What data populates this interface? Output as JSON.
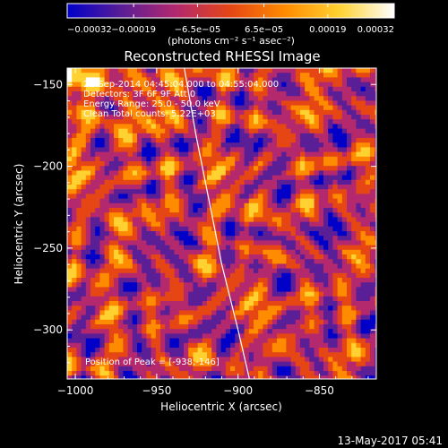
{
  "chart_data": {
    "type": "heatmap",
    "title": "Reconstructed RHESSI Image",
    "xlabel": "Heliocentric X (arcsec)",
    "ylabel": "Heliocentric Y (arcsec)",
    "xlim": [
      -1005,
      -815
    ],
    "ylim": [
      -330,
      -140
    ],
    "x_ticks": [
      -1000,
      -950,
      -900,
      -850
    ],
    "y_ticks": [
      -150,
      -200,
      -250,
      -300
    ],
    "x_tick_labels": [
      "−1000",
      "−950",
      "−900",
      "−850"
    ],
    "y_tick_labels": [
      "−150",
      "−200",
      "−250",
      "−300"
    ],
    "colorbar": {
      "range": [
        -0.00032,
        0.00032
      ],
      "tick_values": [
        -0.00032,
        -0.00019,
        -6.5e-05,
        6.5e-05,
        0.00019,
        0.00032
      ],
      "tick_labels": [
        "−0.00032",
        "−0.00019",
        "−6.5e−05",
        "6.5e−05",
        "0.00019",
        "0.00032"
      ],
      "unit_label": "(photons cm⁻² s⁻¹ asec⁻²)",
      "colors": [
        "#0000c8",
        "#5a1e96",
        "#b4286e",
        "#e64614",
        "#ff8c00",
        "#ffd232",
        "#ffffff"
      ]
    },
    "annotations": [
      "21-Sep-2014 04:45:04.000 to 04:55:04.000",
      "Detectors: 3F 6F 9F  Att 0",
      "Energy Range: 25.0 - 50.0 keV",
      "Clean    Total counts: 5.22E+03"
    ],
    "peak_label": "Position of Peak = [-938,-146]",
    "peak": [
      -938,
      -146
    ],
    "limb_color": "#ffffff",
    "timestamp": "13-May-2017 05:41"
  }
}
